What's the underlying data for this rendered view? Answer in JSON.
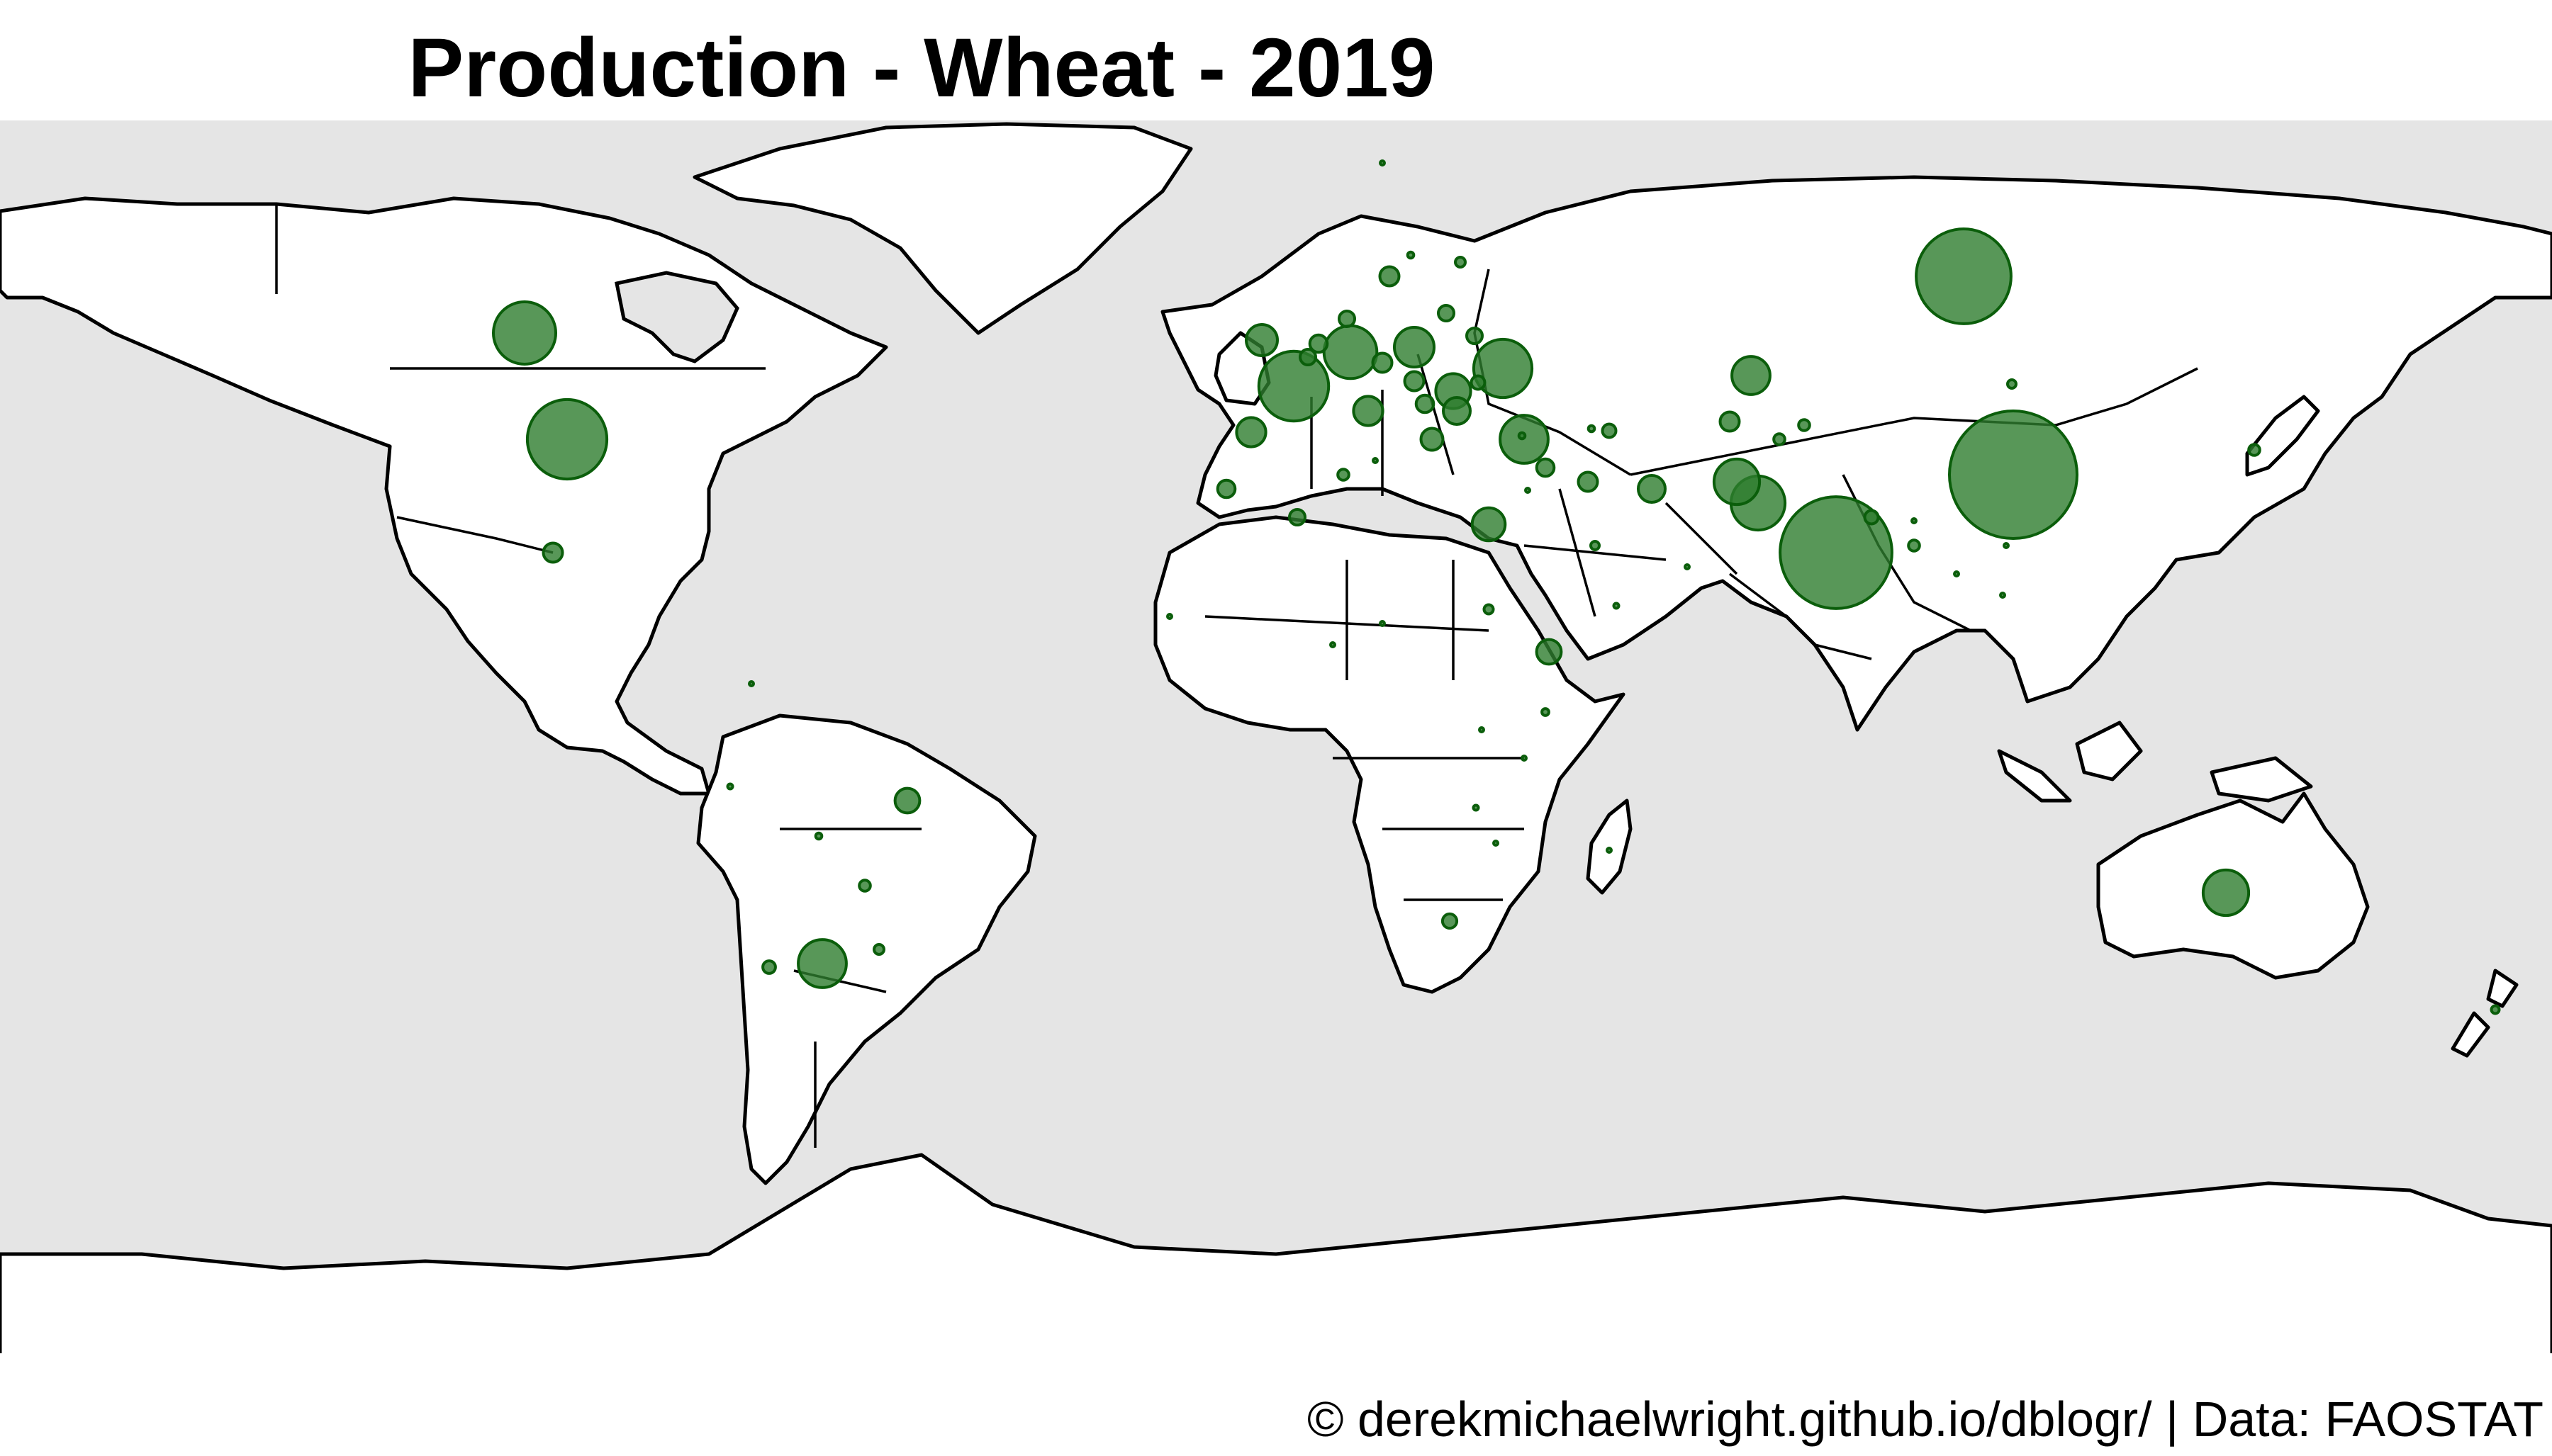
{
  "title": "Production - Wheat - 2019",
  "caption": "© derekmichaelwright.github.io/dblogr/ | Data: FAOSTAT",
  "colors": {
    "ocean": "#e5e5e5",
    "land": "#ffffff",
    "outline": "#000000",
    "bubble_fill": "#2e7d2e",
    "bubble_stroke": "#0b5e0b"
  },
  "chart_data": {
    "type": "bubble_map",
    "title": "Production - Wheat - 2019",
    "projection": "equirectangular",
    "extent": {
      "lon": [
        -180,
        180
      ],
      "lat": [
        -90,
        84
      ]
    },
    "bubble_scale": {
      "max_value": 134,
      "max_radius": 90
    },
    "bubbles": [
      {
        "lon": 104,
        "lat": 34,
        "value": 134
      },
      {
        "lon": 79,
        "lat": 23,
        "value": 103
      },
      {
        "lon": 97,
        "lat": 62,
        "value": 74
      },
      {
        "lon": -100,
        "lat": 39,
        "value": 52
      },
      {
        "lon": 2.5,
        "lat": 46.5,
        "value": 40
      },
      {
        "lon": -106,
        "lat": 54,
        "value": 32
      },
      {
        "lon": 32,
        "lat": 49,
        "value": 28
      },
      {
        "lon": 10.5,
        "lat": 51.3,
        "value": 23
      },
      {
        "lon": 68,
        "lat": 30,
        "value": 24
      },
      {
        "lon": 35,
        "lat": 39,
        "value": 19
      },
      {
        "lon": 65,
        "lat": 33,
        "value": 17
      },
      {
        "lon": 134,
        "lat": -25,
        "value": 17
      },
      {
        "lon": -64,
        "lat": -35,
        "value": 19
      },
      {
        "lon": 19.5,
        "lat": 52,
        "value": 13
      },
      {
        "lon": 25,
        "lat": 45.8,
        "value": 10
      },
      {
        "lon": 67,
        "lat": 48,
        "value": 12
      },
      {
        "lon": 30,
        "lat": 27,
        "value": 9
      },
      {
        "lon": -3.5,
        "lat": 40,
        "value": 7
      },
      {
        "lon": -2,
        "lat": 53,
        "value": 8
      },
      {
        "lon": 13,
        "lat": 43,
        "value": 7
      },
      {
        "lon": 53,
        "lat": 32,
        "value": 6
      },
      {
        "lon": -52,
        "lat": -12,
        "value": 5
      },
      {
        "lon": 38.5,
        "lat": 9,
        "value": 5
      },
      {
        "lon": 25.5,
        "lat": 43,
        "value": 6
      },
      {
        "lon": 22,
        "lat": 39,
        "value": 4
      },
      {
        "lon": 16,
        "lat": 62,
        "value": 3
      },
      {
        "lon": -102,
        "lat": 23,
        "value": 3
      },
      {
        "lon": 44,
        "lat": 33,
        "value": 3
      },
      {
        "lon": 64,
        "lat": 41.5,
        "value": 3
      },
      {
        "lon": 6,
        "lat": 52.5,
        "value": 2.5
      },
      {
        "lon": 4.5,
        "lat": 50.6,
        "value": 2
      },
      {
        "lon": 10,
        "lat": 56,
        "value": 2
      },
      {
        "lon": 15,
        "lat": 49.8,
        "value": 3
      },
      {
        "lon": 19.5,
        "lat": 47.2,
        "value": 3
      },
      {
        "lon": 21,
        "lat": 44,
        "value": 2.5
      },
      {
        "lon": 24,
        "lat": 56.8,
        "value": 2
      },
      {
        "lon": 28,
        "lat": 53.6,
        "value": 2
      },
      {
        "lon": -7,
        "lat": 32,
        "value": 2.5
      },
      {
        "lon": 9.5,
        "lat": 34,
        "value": 1
      },
      {
        "lon": 3,
        "lat": 28,
        "value": 2
      },
      {
        "lon": 38,
        "lat": 35,
        "value": 2.5
      },
      {
        "lon": 28.5,
        "lat": 47,
        "value": 1.5
      },
      {
        "lon": 47,
        "lat": 40.2,
        "value": 1.5
      },
      {
        "lon": 71,
        "lat": 39,
        "value": 1
      },
      {
        "lon": 74.5,
        "lat": 41,
        "value": 1
      },
      {
        "lon": 103.8,
        "lat": 46.8,
        "value": 0.6
      },
      {
        "lon": 138,
        "lat": 37.5,
        "value": 1
      },
      {
        "lon": -71.5,
        "lat": -35.5,
        "value": 1.3
      },
      {
        "lon": -58,
        "lat": -24,
        "value": 1
      },
      {
        "lon": -56,
        "lat": -33,
        "value": 0.8
      },
      {
        "lon": -64.5,
        "lat": -17,
        "value": 0.3
      },
      {
        "lon": 24.5,
        "lat": -29,
        "value": 1.7
      },
      {
        "lon": 172,
        "lat": -41.5,
        "value": 0.5
      },
      {
        "lon": 45,
        "lat": 24,
        "value": 0.6
      },
      {
        "lon": 19,
        "lat": 65,
        "value": 0.3
      },
      {
        "lon": 26,
        "lat": 64,
        "value": 0.8
      },
      {
        "lon": 15,
        "lat": 78,
        "value": 0.05
      },
      {
        "lon": 44.5,
        "lat": 40.5,
        "value": 0.3
      },
      {
        "lon": 90,
        "lat": 27.5,
        "value": 0.1
      },
      {
        "lon": 84,
        "lat": 28,
        "value": 1.5
      },
      {
        "lon": 90,
        "lat": 24,
        "value": 1
      },
      {
        "lon": 30,
        "lat": 15,
        "value": 0.7
      },
      {
        "lon": 8,
        "lat": 10,
        "value": 0.1
      },
      {
        "lon": 34.7,
        "lat": 39.5,
        "value": 0.3
      },
      {
        "lon": -15,
        "lat": 14,
        "value": 0.05
      },
      {
        "lon": 28.2,
        "lat": -13,
        "value": 0.2
      },
      {
        "lon": 35,
        "lat": -6,
        "value": 0.1
      },
      {
        "lon": 47,
        "lat": -19,
        "value": 0.01
      },
      {
        "lon": 31,
        "lat": -18,
        "value": 0.1
      },
      {
        "lon": 38,
        "lat": 0.5,
        "value": 0.4
      },
      {
        "lon": 29,
        "lat": -2,
        "value": 0.05
      },
      {
        "lon": 14,
        "lat": 36,
        "value": 0.05
      },
      {
        "lon": 35.5,
        "lat": 31.8,
        "value": 0.1
      },
      {
        "lon": -77,
        "lat": -10,
        "value": 0.2
      },
      {
        "lon": -74,
        "lat": 4.5,
        "value": 0.01
      },
      {
        "lon": 96,
        "lat": 20,
        "value": 0.1
      },
      {
        "lon": 102.5,
        "lat": 17,
        "value": 0.01
      },
      {
        "lon": 58,
        "lat": 21,
        "value": 0.01
      },
      {
        "lon": 48,
        "lat": 15.5,
        "value": 0.2
      },
      {
        "lon": 15,
        "lat": 13,
        "value": 0.01
      },
      {
        "lon": 103,
        "lat": 24,
        "value": 0.01
      }
    ]
  }
}
